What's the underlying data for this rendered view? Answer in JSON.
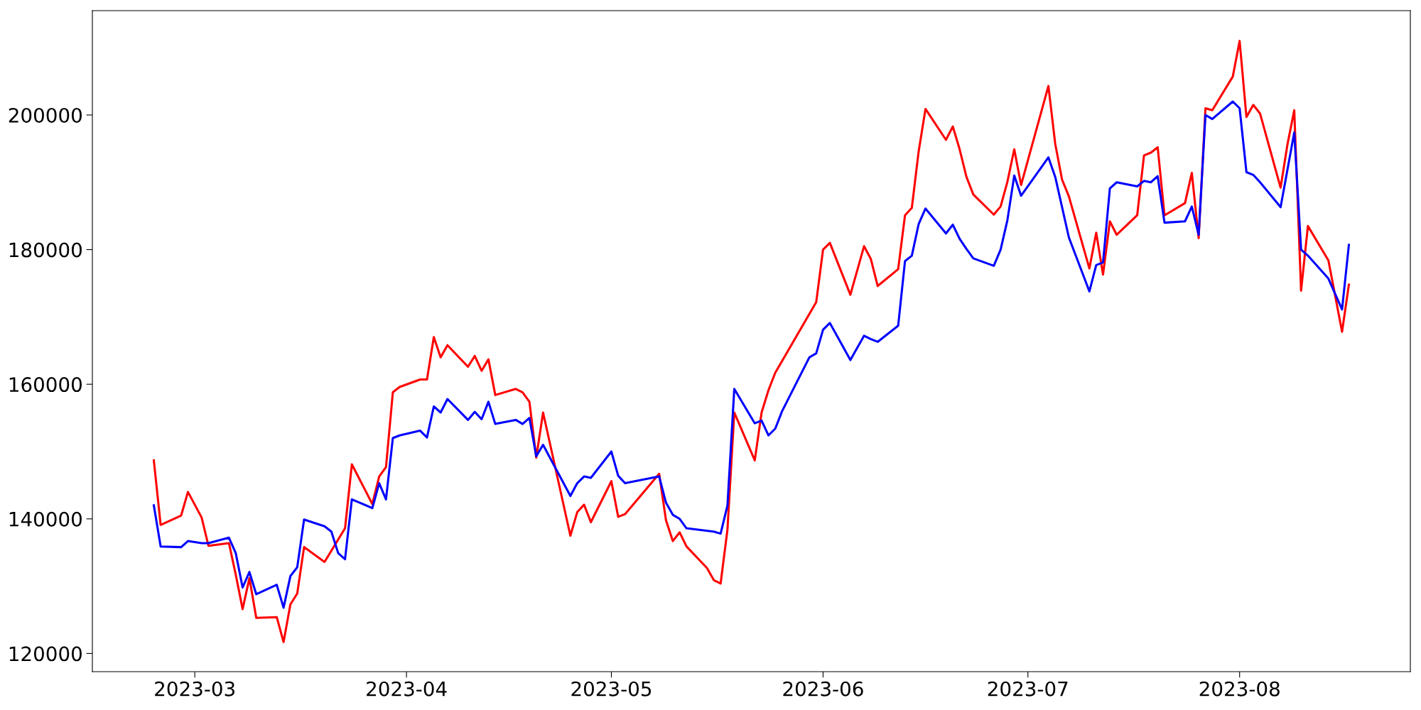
{
  "chart_data": {
    "type": "line",
    "xlim": [
      "2023-02-14",
      "2023-08-26"
    ],
    "ylim": [
      117300,
      215500
    ],
    "xticks": [
      "2023-03",
      "2023-04",
      "2023-05",
      "2023-06",
      "2023-07",
      "2023-08"
    ],
    "yticks": [
      120000,
      140000,
      160000,
      180000,
      200000
    ],
    "grid": false,
    "legend": false,
    "marker": "none",
    "line_style": "solid",
    "series": [
      {
        "color": "#ff0000",
        "x": [
          "2023-02-23",
          "2023-02-24",
          "2023-02-27",
          "2023-02-28",
          "2023-03-02",
          "2023-03-03",
          "2023-03-06",
          "2023-03-07",
          "2023-03-08",
          "2023-03-09",
          "2023-03-10",
          "2023-03-13",
          "2023-03-14",
          "2023-03-15",
          "2023-03-16",
          "2023-03-17",
          "2023-03-20",
          "2023-03-23",
          "2023-03-24",
          "2023-03-27",
          "2023-03-28",
          "2023-03-29",
          "2023-03-30",
          "2023-03-31",
          "2023-04-03",
          "2023-04-04",
          "2023-04-05",
          "2023-04-06",
          "2023-04-07",
          "2023-04-10",
          "2023-04-11",
          "2023-04-12",
          "2023-04-13",
          "2023-04-14",
          "2023-04-17",
          "2023-04-18",
          "2023-04-19",
          "2023-04-20",
          "2023-04-21",
          "2023-04-25",
          "2023-04-26",
          "2023-04-27",
          "2023-04-28",
          "2023-05-01",
          "2023-05-02",
          "2023-05-03",
          "2023-05-08",
          "2023-05-09",
          "2023-05-10",
          "2023-05-11",
          "2023-05-12",
          "2023-05-15",
          "2023-05-16",
          "2023-05-17",
          "2023-05-18",
          "2023-05-19",
          "2023-05-22",
          "2023-05-23",
          "2023-05-24",
          "2023-05-25",
          "2023-05-31",
          "2023-06-01",
          "2023-06-02",
          "2023-06-05",
          "2023-06-07",
          "2023-06-08",
          "2023-06-09",
          "2023-06-12",
          "2023-06-13",
          "2023-06-14",
          "2023-06-15",
          "2023-06-16",
          "2023-06-19",
          "2023-06-20",
          "2023-06-21",
          "2023-06-22",
          "2023-06-23",
          "2023-06-26",
          "2023-06-27",
          "2023-06-28",
          "2023-06-29",
          "2023-06-30",
          "2023-07-04",
          "2023-07-05",
          "2023-07-06",
          "2023-07-07",
          "2023-07-10",
          "2023-07-11",
          "2023-07-12",
          "2023-07-13",
          "2023-07-14",
          "2023-07-17",
          "2023-07-18",
          "2023-07-19",
          "2023-07-20",
          "2023-07-21",
          "2023-07-24",
          "2023-07-25",
          "2023-07-26",
          "2023-07-27",
          "2023-07-28",
          "2023-07-31",
          "2023-08-01",
          "2023-08-02",
          "2023-08-03",
          "2023-08-04",
          "2023-08-07",
          "2023-08-08",
          "2023-08-09",
          "2023-08-10",
          "2023-08-11",
          "2023-08-14",
          "2023-08-16",
          "2023-08-17"
        ],
        "values": [
          148700,
          139100,
          140500,
          144000,
          140200,
          136000,
          136400,
          131700,
          126600,
          131200,
          125300,
          125400,
          121700,
          127300,
          128900,
          135800,
          133600,
          138600,
          148100,
          142200,
          146300,
          147700,
          158800,
          159600,
          160700,
          160700,
          167000,
          164000,
          165800,
          162600,
          164200,
          162000,
          163700,
          158400,
          159300,
          158800,
          157400,
          149100,
          155800,
          137500,
          141000,
          142100,
          139500,
          145600,
          140300,
          140700,
          146700,
          139800,
          136700,
          138000,
          135900,
          132700,
          130900,
          130400,
          138400,
          155800,
          148700,
          155800,
          159100,
          161700,
          172200,
          180000,
          181000,
          173300,
          180500,
          178600,
          174600,
          177100,
          185100,
          186200,
          194600,
          200900,
          196300,
          198300,
          194900,
          190800,
          188200,
          185200,
          186400,
          190100,
          194900,
          189600,
          204300,
          195700,
          190400,
          187900,
          177200,
          182500,
          176300,
          184200,
          182200,
          185100,
          194000,
          194400,
          195200,
          185100,
          186900,
          191400,
          181700,
          201000,
          200700,
          205700,
          211000,
          199700,
          201500,
          200200,
          189200,
          195600,
          200700,
          173900,
          183500,
          178400,
          167800,
          174800
        ]
      },
      {
        "color": "#0000ff",
        "x": [
          "2023-02-23",
          "2023-02-24",
          "2023-02-27",
          "2023-02-28",
          "2023-03-02",
          "2023-03-03",
          "2023-03-06",
          "2023-03-07",
          "2023-03-08",
          "2023-03-09",
          "2023-03-10",
          "2023-03-13",
          "2023-03-14",
          "2023-03-15",
          "2023-03-16",
          "2023-03-17",
          "2023-03-20",
          "2023-03-21",
          "2023-03-22",
          "2023-03-23",
          "2023-03-24",
          "2023-03-27",
          "2023-03-28",
          "2023-03-29",
          "2023-03-30",
          "2023-03-31",
          "2023-04-03",
          "2023-04-04",
          "2023-04-05",
          "2023-04-06",
          "2023-04-07",
          "2023-04-10",
          "2023-04-11",
          "2023-04-12",
          "2023-04-13",
          "2023-04-14",
          "2023-04-17",
          "2023-04-18",
          "2023-04-19",
          "2023-04-20",
          "2023-04-21",
          "2023-04-25",
          "2023-04-26",
          "2023-04-27",
          "2023-04-28",
          "2023-05-01",
          "2023-05-02",
          "2023-05-03",
          "2023-05-08",
          "2023-05-09",
          "2023-05-10",
          "2023-05-11",
          "2023-05-12",
          "2023-05-16",
          "2023-05-17",
          "2023-05-18",
          "2023-05-19",
          "2023-05-22",
          "2023-05-23",
          "2023-05-24",
          "2023-05-25",
          "2023-05-26",
          "2023-05-30",
          "2023-05-31",
          "2023-06-01",
          "2023-06-02",
          "2023-06-05",
          "2023-06-07",
          "2023-06-08",
          "2023-06-09",
          "2023-06-12",
          "2023-06-13",
          "2023-06-14",
          "2023-06-15",
          "2023-06-16",
          "2023-06-19",
          "2023-06-20",
          "2023-06-21",
          "2023-06-22",
          "2023-06-23",
          "2023-06-26",
          "2023-06-27",
          "2023-06-28",
          "2023-06-29",
          "2023-06-30",
          "2023-07-04",
          "2023-07-05",
          "2023-07-06",
          "2023-07-07",
          "2023-07-10",
          "2023-07-11",
          "2023-07-12",
          "2023-07-13",
          "2023-07-14",
          "2023-07-17",
          "2023-07-18",
          "2023-07-19",
          "2023-07-20",
          "2023-07-21",
          "2023-07-24",
          "2023-07-25",
          "2023-07-26",
          "2023-07-27",
          "2023-07-28",
          "2023-07-31",
          "2023-08-01",
          "2023-08-02",
          "2023-08-03",
          "2023-08-04",
          "2023-08-07",
          "2023-08-09",
          "2023-08-10",
          "2023-08-11",
          "2023-08-14",
          "2023-08-16",
          "2023-08-17"
        ],
        "values": [
          142000,
          135900,
          135800,
          136700,
          136400,
          136400,
          137200,
          134900,
          129800,
          132100,
          128800,
          130200,
          126800,
          131500,
          132800,
          139900,
          138900,
          138100,
          134900,
          134000,
          142900,
          141600,
          145300,
          142900,
          152000,
          152400,
          153100,
          152100,
          156700,
          155800,
          157800,
          154700,
          155900,
          154800,
          157400,
          154100,
          154700,
          154100,
          155000,
          149300,
          151000,
          143400,
          145300,
          146300,
          146100,
          150000,
          146400,
          145300,
          146300,
          142400,
          140600,
          140000,
          138600,
          138100,
          137800,
          142000,
          159300,
          154200,
          154600,
          152400,
          153400,
          156000,
          164000,
          164600,
          168100,
          169100,
          163600,
          167200,
          166700,
          166300,
          168700,
          178300,
          179100,
          183800,
          186100,
          182400,
          183700,
          181600,
          180100,
          178700,
          177600,
          180000,
          184400,
          191000,
          188000,
          193700,
          190800,
          186300,
          181800,
          173800,
          177700,
          178100,
          189100,
          190000,
          189400,
          190200,
          190000,
          190900,
          184000,
          184200,
          186400,
          182200,
          200000,
          199400,
          202000,
          201000,
          191500,
          191100,
          190000,
          186300,
          197400,
          180000,
          179100,
          175700,
          171100,
          180700
        ]
      }
    ]
  }
}
